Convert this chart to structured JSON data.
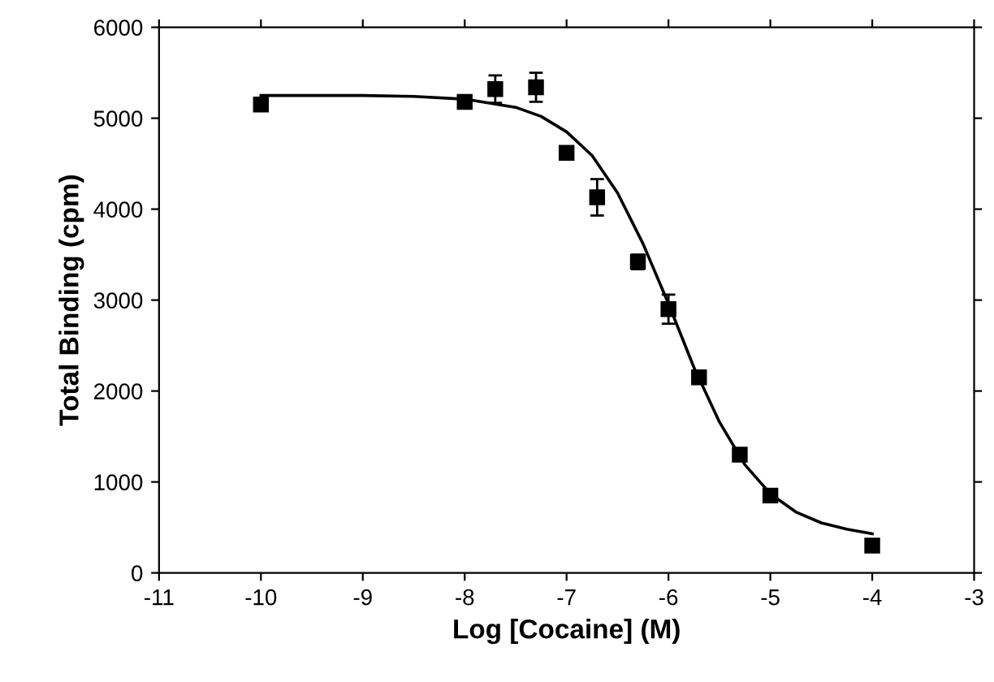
{
  "chart_data": {
    "type": "scatter",
    "xlabel": "Log [Cocaine] (M)",
    "ylabel": "Total Binding (cpm)",
    "xlim": [
      -11,
      -3
    ],
    "xticks": [
      -11,
      -10,
      -9,
      -8,
      -7,
      -6,
      -5,
      -4,
      -3
    ],
    "ylim": [
      0,
      6000
    ],
    "yticks": [
      0,
      1000,
      2000,
      3000,
      4000,
      5000,
      6000
    ],
    "grid": false,
    "legend": false,
    "marker": "square",
    "series": [
      {
        "color": "#000000",
        "x": [
          -10,
          -8,
          -7.7,
          -7.3,
          -7,
          -6.7,
          -6.3,
          -6,
          -5.7,
          -5.3,
          -5,
          -4
        ],
        "values": [
          5150,
          5180,
          5320,
          5340,
          4620,
          4130,
          3420,
          2900,
          2150,
          1300,
          850,
          300
        ],
        "errors": [
          70,
          null,
          150,
          160,
          null,
          200,
          80,
          160,
          null,
          null,
          null,
          null
        ]
      },
      {
        "type": "line",
        "color": "#000000",
        "line_style": "solid",
        "marker": "none",
        "x": [
          -10,
          -9,
          -8.5,
          -8,
          -7.5,
          -7.25,
          -7,
          -6.75,
          -6.5,
          -6.25,
          -6,
          -5.75,
          -5.5,
          -5.25,
          -5,
          -4.75,
          -4.5,
          -4.25,
          -4
        ],
        "values": [
          5250,
          5250,
          5240,
          5210,
          5120,
          5020,
          4850,
          4590,
          4180,
          3620,
          2960,
          2260,
          1660,
          1190,
          870,
          670,
          550,
          480,
          430
        ]
      }
    ]
  }
}
